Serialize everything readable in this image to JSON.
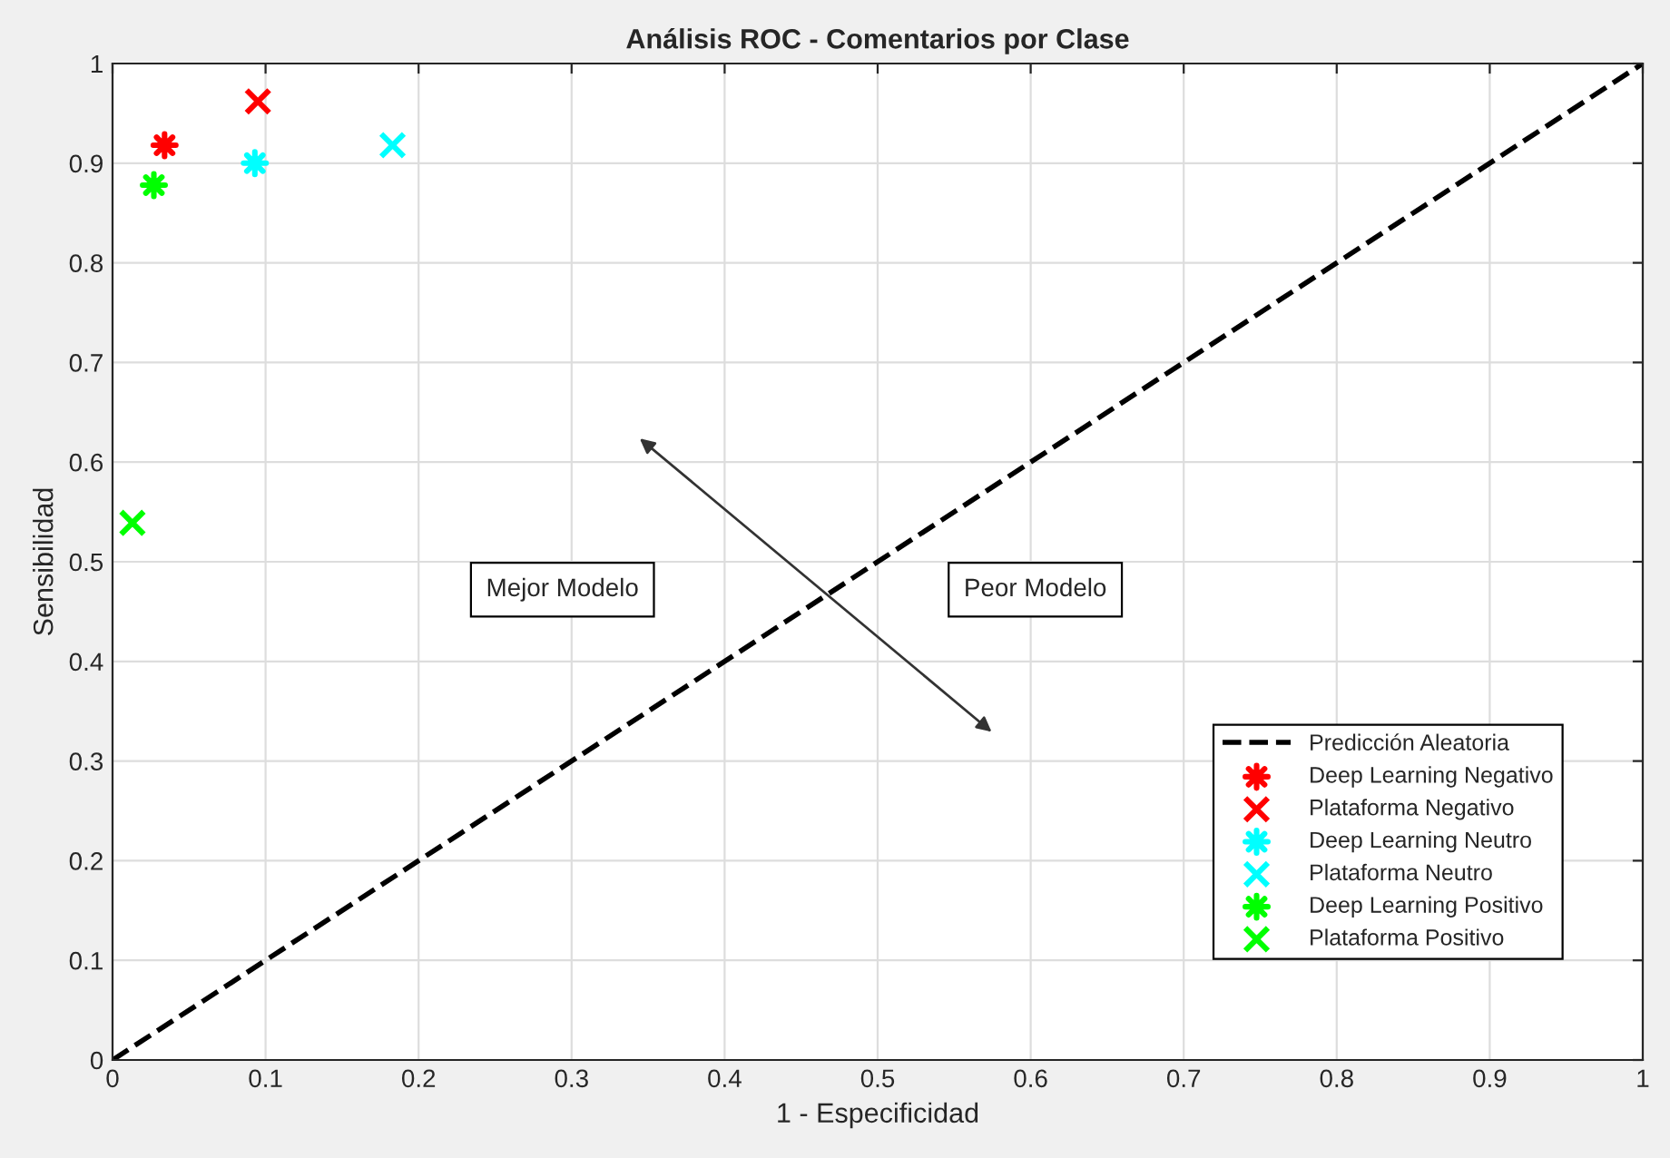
{
  "chart_data": {
    "type": "scatter",
    "title": "Análisis ROC - Comentarios por Clase",
    "xlabel": "1 - Especificidad",
    "ylabel": "Sensibilidad",
    "series": [
      {
        "name": "Predicción Aleatoria",
        "type": "line",
        "color": "#000000",
        "line_style": "dashed",
        "marker": "none",
        "x": [
          0,
          1
        ],
        "values": [
          0,
          1
        ]
      },
      {
        "name": "Deep Learning Negativo",
        "color": "#ff0000",
        "marker": "star",
        "x": [
          0.034
        ],
        "values": [
          0.918
        ]
      },
      {
        "name": "Plataforma Negativo",
        "color": "#ff0000",
        "marker": "cross",
        "x": [
          0.095
        ],
        "values": [
          0.962
        ]
      },
      {
        "name": "Deep Learning Neutro",
        "color": "#00ffff",
        "marker": "star",
        "x": [
          0.093
        ],
        "values": [
          0.9
        ]
      },
      {
        "name": "Plataforma Neutro",
        "color": "#00ffff",
        "marker": "cross",
        "x": [
          0.183
        ],
        "values": [
          0.918
        ]
      },
      {
        "name": "Deep Learning Positivo",
        "color": "#00ff00",
        "marker": "star",
        "x": [
          0.027
        ],
        "values": [
          0.878
        ]
      },
      {
        "name": "Plataforma Positivo",
        "color": "#00ff00",
        "marker": "cross",
        "x": [
          0.013
        ],
        "values": [
          0.539
        ]
      }
    ],
    "annotations": [
      "Mejor Modelo",
      "Peor Modelo"
    ],
    "xlim": [
      0,
      1
    ],
    "ylim": [
      0,
      1
    ],
    "xticks": [
      0,
      0.1,
      0.2,
      0.3,
      0.4,
      0.5,
      0.6,
      0.7,
      0.8,
      0.9,
      1
    ],
    "yticks": [
      0,
      0.1,
      0.2,
      0.3,
      0.4,
      0.5,
      0.6,
      0.7,
      0.8,
      0.9,
      1
    ],
    "grid": true,
    "legend": "bottom right"
  }
}
